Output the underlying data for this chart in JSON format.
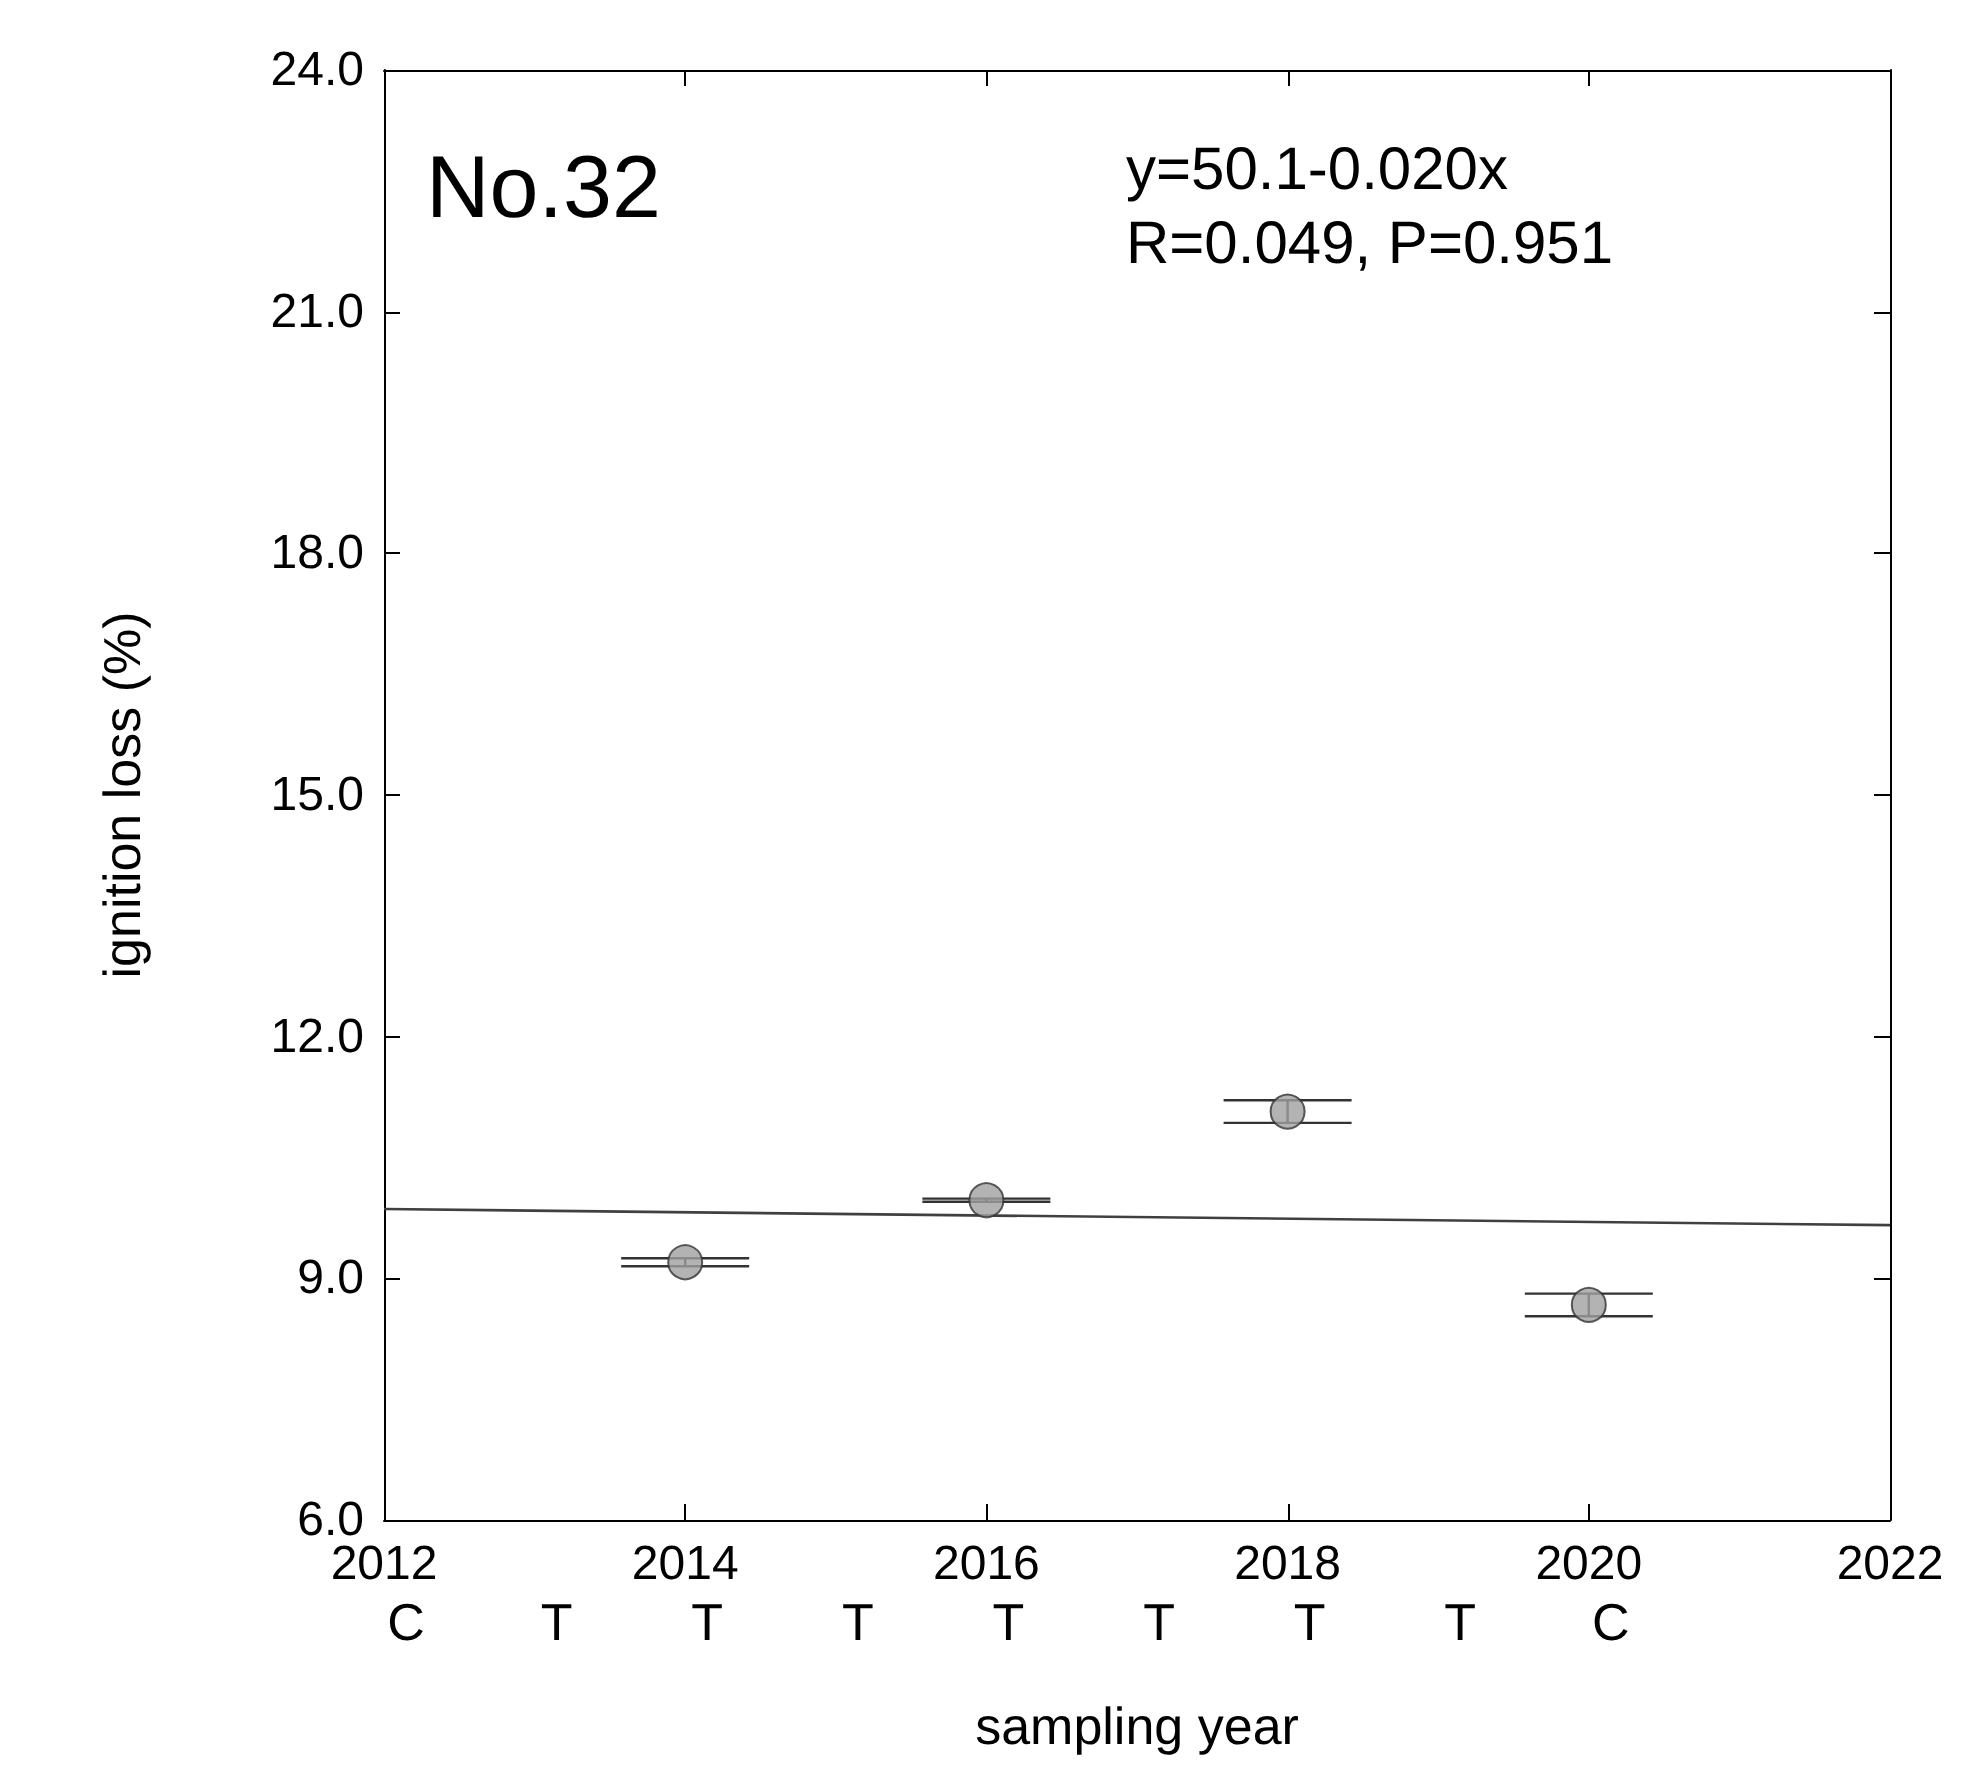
{
  "chart_data": {
    "type": "scatter",
    "title": "No.32",
    "xlabel": "sampling year",
    "ylabel": "ignition loss (%)",
    "series": [
      {
        "color": "#a0a0a0",
        "x": [
          2014,
          2016,
          2018,
          2020
        ],
        "values": [
          9.2,
          9.97,
          11.07,
          8.67
        ],
        "errors": [
          0.05,
          0.02,
          0.14,
          0.14
        ]
      },
      {
        "type": "line",
        "marker": "none",
        "color": "#404040",
        "x": [
          2012,
          2022
        ],
        "values": [
          9.86,
          9.66
        ]
      }
    ],
    "xlim": [
      2012,
      2022
    ],
    "xticks": [
      2012,
      2014,
      2016,
      2018,
      2020,
      2022
    ],
    "ylim": [
      6,
      24
    ],
    "yticks": [
      {
        "value": 6,
        "label": "6.0"
      },
      {
        "value": 9,
        "label": "9.0"
      },
      {
        "value": 12,
        "label": "12.0"
      },
      {
        "value": 15,
        "label": "15.0"
      },
      {
        "value": 18,
        "label": "18.0"
      },
      {
        "value": 21,
        "label": "21.0"
      },
      {
        "value": 24,
        "label": "24.0"
      }
    ],
    "annotations": [
      "y=50.1-0.020x",
      "R=0.049, P=0.951",
      "C",
      "T",
      "T",
      "T",
      "T",
      "T",
      "T",
      "T",
      "C"
    ],
    "grid": false,
    "marker": "circle",
    "line_style": "solid"
  }
}
